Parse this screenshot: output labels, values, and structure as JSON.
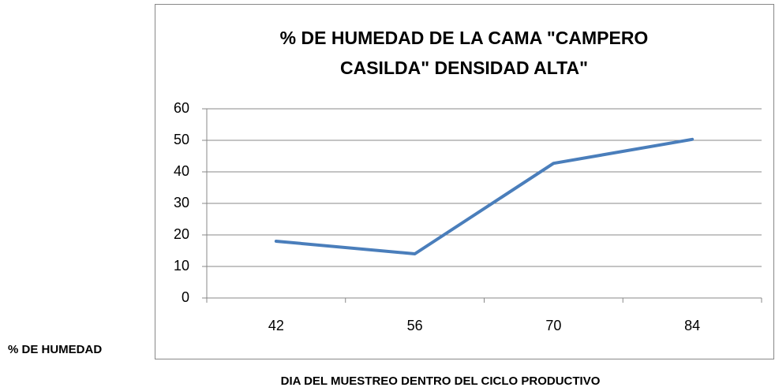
{
  "chart_data": {
    "type": "line",
    "title": [
      "% DE HUMEDAD DE LA CAMA \"CAMPERO",
      "CASILDA\" DENSIDAD ALTA\""
    ],
    "y_label": "% DE HUMEDAD",
    "x_label": "DIA DEL MUESTREO DENTRO DEL CICLO PRODUCTIVO",
    "categories": [
      "42",
      "56",
      "70",
      "84"
    ],
    "series": [
      {
        "name": "% DE HUMEDAD",
        "color": "#4a7ebb",
        "values": [
          18,
          14,
          42.7,
          50.3
        ]
      }
    ],
    "ylim": [
      0,
      60
    ],
    "yticks": [
      0,
      10,
      20,
      30,
      40,
      50,
      60
    ],
    "grid": true
  }
}
